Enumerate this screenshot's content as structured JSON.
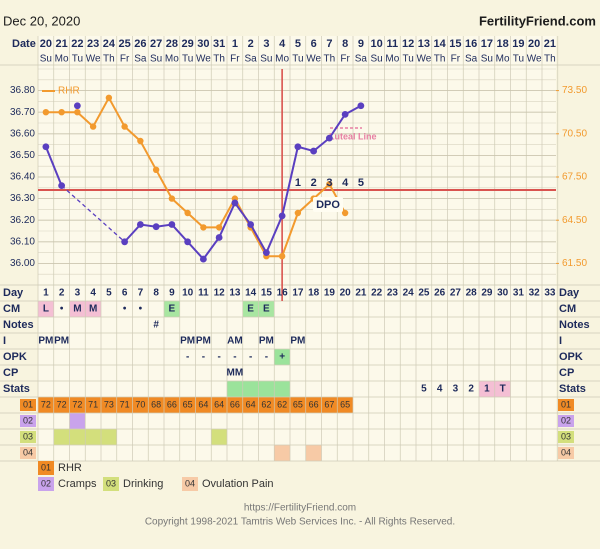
{
  "header": {
    "date": "Dec 20, 2020",
    "site": "FertilityFriend.com"
  },
  "footer": {
    "url": "https://FertilityFriend.com",
    "copyright": "Copyright 1998-2021 Tamtris Web Services Inc. - All Rights Reserved."
  },
  "chart_data": {
    "type": "line",
    "x_label": "Date",
    "categories": [
      "20",
      "21",
      "22",
      "23",
      "24",
      "25",
      "26",
      "27",
      "28",
      "29",
      "30",
      "31",
      "1",
      "2",
      "3",
      "4",
      "5",
      "6",
      "7",
      "8",
      "9",
      "10",
      "11",
      "12",
      "13",
      "14",
      "15",
      "16",
      "17",
      "18",
      "19",
      "20",
      "21"
    ],
    "weekdays": [
      "Su",
      "Mo",
      "Tu",
      "We",
      "Th",
      "Fr",
      "Sa",
      "Su",
      "Mo",
      "Tu",
      "We",
      "Th",
      "Fr",
      "Sa",
      "Su",
      "Mo",
      "Tu",
      "We",
      "Th",
      "Fr",
      "Sa",
      "Su",
      "Mo",
      "Tu",
      "We",
      "Th",
      "Fr",
      "Sa",
      "Su",
      "Mo",
      "Tu",
      "We",
      "Th"
    ],
    "series": [
      {
        "color": "#5a3fc0",
        "values": [
          36.54,
          36.36,
          36.73,
          null,
          null,
          36.1,
          36.18,
          36.17,
          36.18,
          36.1,
          36.02,
          36.12,
          36.28,
          36.18,
          36.05,
          36.22,
          36.54,
          36.52,
          36.58,
          36.69,
          36.73,
          null,
          null,
          null,
          null,
          null,
          null,
          null,
          null,
          null,
          null,
          null,
          null
        ],
        "discarded": [
          2
        ]
      },
      {
        "name": "RHR",
        "axis": "y2",
        "color": "#f29a2e",
        "values": [
          72,
          72,
          72,
          71,
          73,
          71,
          70,
          68,
          66,
          65,
          64,
          64,
          66,
          64,
          62,
          62,
          65,
          66,
          67,
          65,
          null,
          null,
          null,
          null,
          null,
          null,
          null,
          null,
          null,
          null,
          null,
          null,
          null
        ]
      }
    ],
    "ylim": [
      35.9,
      36.9
    ],
    "yticks": [
      {
        "value": 36,
        "label": "36.00"
      },
      {
        "value": 36.1,
        "label": "36.10"
      },
      {
        "value": 36.2,
        "label": "36.20"
      },
      {
        "value": 36.3,
        "label": "36.30"
      },
      {
        "value": 36.4,
        "label": "36.40"
      },
      {
        "value": 36.5,
        "label": "36.50"
      },
      {
        "value": 36.6,
        "label": "36.60"
      },
      {
        "value": 36.7,
        "label": "36.70"
      },
      {
        "value": 36.8,
        "label": "36.80"
      }
    ],
    "y2lim": [
      60,
      75
    ],
    "y2ticks": [
      {
        "value": 61.5,
        "label": "61.50"
      },
      {
        "value": 64.5,
        "label": "64.50"
      },
      {
        "value": 67.5,
        "label": "67.50"
      },
      {
        "value": 70.5,
        "label": "70.50"
      },
      {
        "value": 73.5,
        "label": "73.50"
      }
    ],
    "grid": true,
    "coverline": {
      "value": 36.34,
      "color": "#d9534f"
    },
    "ovulation_index": 15,
    "dpo": {
      "label": "DPO",
      "days": [
        1,
        2,
        3,
        4,
        5
      ]
    },
    "luteal_line": {
      "label": "Luteal Line",
      "color": "#e77fa3"
    }
  },
  "table": {
    "day_label": "Day",
    "days": [
      1,
      2,
      3,
      4,
      5,
      6,
      7,
      8,
      9,
      10,
      11,
      12,
      13,
      14,
      15,
      16,
      17,
      18,
      19,
      20,
      21,
      22,
      23,
      24,
      25,
      26,
      27,
      28,
      29,
      30,
      31,
      32,
      33
    ],
    "rows": [
      {
        "label": "CM",
        "cells": [
          {
            "day": 1,
            "text": "L",
            "fill": "#f4bfd4"
          },
          {
            "day": 2,
            "text": "•"
          },
          {
            "day": 3,
            "text": "M",
            "fill": "#f4bfd4"
          },
          {
            "day": 4,
            "text": "M",
            "fill": "#f4bfd4"
          },
          {
            "day": 6,
            "text": "•"
          },
          {
            "day": 7,
            "text": "•"
          },
          {
            "day": 9,
            "text": "E",
            "fill": "#a8e6a1"
          },
          {
            "day": 14,
            "text": "E",
            "fill": "#a8e6a1"
          },
          {
            "day": 15,
            "text": "E",
            "fill": "#a8e6a1"
          }
        ]
      },
      {
        "label": "Notes",
        "cells": [
          {
            "day": 8,
            "text": "#"
          }
        ]
      },
      {
        "label": "I",
        "cells": [
          {
            "day": 1,
            "text": "PM"
          },
          {
            "day": 2,
            "text": "PM"
          },
          {
            "day": 10,
            "text": "PM"
          },
          {
            "day": 11,
            "text": "PM"
          },
          {
            "day": 13,
            "text": "AM"
          },
          {
            "day": 15,
            "text": "PM"
          },
          {
            "day": 17,
            "text": "PM"
          }
        ]
      },
      {
        "label": "OPK",
        "cells": [
          {
            "day": 10,
            "text": "-"
          },
          {
            "day": 11,
            "text": "-"
          },
          {
            "day": 12,
            "text": "-"
          },
          {
            "day": 13,
            "text": "-"
          },
          {
            "day": 14,
            "text": "-"
          },
          {
            "day": 15,
            "text": "-"
          },
          {
            "day": 16,
            "text": "+",
            "fill": "#9be39b"
          }
        ]
      },
      {
        "label": "CP",
        "cells": [
          {
            "day": 13,
            "text": "MM"
          }
        ]
      },
      {
        "label": "Stats",
        "cells": [
          {
            "day": 13,
            "fill": "#9be39b"
          },
          {
            "day": 14,
            "fill": "#9be39b"
          },
          {
            "day": 15,
            "fill": "#9be39b"
          },
          {
            "day": 16,
            "fill": "#9be39b"
          },
          {
            "day": 25,
            "text": "5"
          },
          {
            "day": 26,
            "text": "4"
          },
          {
            "day": 27,
            "text": "3"
          },
          {
            "day": 28,
            "text": "2"
          },
          {
            "day": 29,
            "text": "1",
            "fill": "#f4bfd4"
          },
          {
            "day": 30,
            "text": "T",
            "fill": "#f4bfd4"
          }
        ]
      }
    ]
  },
  "legend": [
    {
      "code": "01",
      "text": "RHR",
      "color": "#f08a24"
    },
    {
      "code": "02",
      "text": "Cramps",
      "color": "#c9a3ec",
      "days": [
        3
      ]
    },
    {
      "code": "03",
      "text": "Drinking",
      "color": "#d3df7c",
      "days": [
        2,
        3,
        4,
        5,
        12
      ]
    },
    {
      "code": "04",
      "text": "Ovulation Pain",
      "color": "#f7caa6",
      "days": [
        16,
        18
      ]
    }
  ]
}
